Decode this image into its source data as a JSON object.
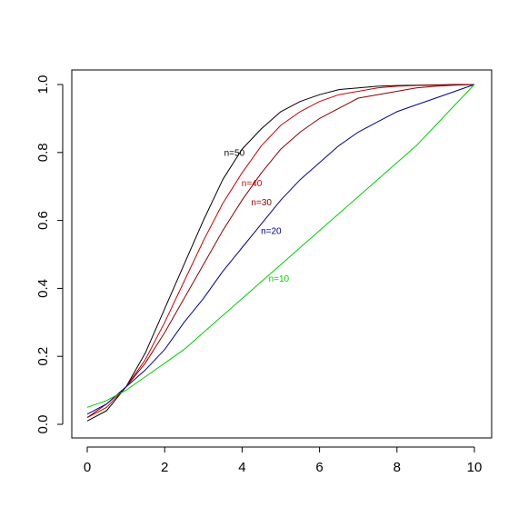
{
  "chart_data": {
    "type": "line",
    "title": "",
    "xlabel": "",
    "ylabel": "",
    "xlim": [
      0,
      10
    ],
    "ylim": [
      0,
      1
    ],
    "x_ticks": [
      0,
      2,
      4,
      6,
      8,
      10
    ],
    "x_tick_labels": [
      "0",
      "2",
      "4",
      "6",
      "8",
      "10"
    ],
    "y_ticks": [
      0.0,
      0.2,
      0.4,
      0.6,
      0.8,
      1.0
    ],
    "y_tick_labels": [
      "0.0",
      "0.2",
      "0.4",
      "0.6",
      "0.8",
      "1.0"
    ],
    "grid": false,
    "legend": "none",
    "series": [
      {
        "name": "n=50",
        "color": "#000000",
        "x": [
          0,
          0.5,
          1,
          1.5,
          2,
          2.5,
          3,
          3.5,
          4,
          4.5,
          5,
          5.5,
          6,
          6.5,
          7,
          7.5,
          8,
          8.5,
          9,
          9.5,
          10
        ],
        "values": [
          0.01,
          0.04,
          0.11,
          0.21,
          0.34,
          0.47,
          0.6,
          0.72,
          0.81,
          0.87,
          0.92,
          0.95,
          0.97,
          0.985,
          0.99,
          0.995,
          0.997,
          0.998,
          0.999,
          1.0,
          1.0
        ],
        "label_x": 3.8,
        "label_y": 0.79
      },
      {
        "name": "n=40",
        "color": "#cc0000",
        "x": [
          0,
          0.5,
          1,
          1.5,
          2,
          2.5,
          3,
          3.5,
          4,
          4.5,
          5,
          5.5,
          6,
          6.5,
          7,
          7.5,
          8,
          8.5,
          9,
          9.5,
          10
        ],
        "values": [
          0.02,
          0.05,
          0.11,
          0.19,
          0.3,
          0.42,
          0.54,
          0.65,
          0.74,
          0.82,
          0.88,
          0.92,
          0.95,
          0.97,
          0.98,
          0.99,
          0.995,
          0.997,
          0.998,
          0.999,
          1.0
        ],
        "label_x": 4.25,
        "label_y": 0.7
      },
      {
        "name": "n=30",
        "color": "#8b0000",
        "x": [
          0,
          0.5,
          1,
          1.5,
          2,
          2.5,
          3,
          3.5,
          4,
          4.5,
          5,
          5.5,
          6,
          6.5,
          7,
          7.5,
          8,
          8.5,
          9,
          9.5,
          10
        ],
        "values": [
          0.02,
          0.06,
          0.11,
          0.18,
          0.27,
          0.37,
          0.47,
          0.57,
          0.66,
          0.74,
          0.81,
          0.86,
          0.9,
          0.93,
          0.96,
          0.97,
          0.98,
          0.99,
          0.995,
          0.998,
          1.0
        ],
        "label_x": 4.5,
        "label_y": 0.645
      },
      {
        "name": "n=20",
        "color": "#00008b",
        "x": [
          0,
          0.5,
          1,
          1.5,
          2,
          2.5,
          3,
          3.5,
          4,
          4.5,
          5,
          5.5,
          6,
          6.5,
          7,
          7.5,
          8,
          8.5,
          9,
          9.5,
          10
        ],
        "values": [
          0.03,
          0.06,
          0.11,
          0.16,
          0.22,
          0.3,
          0.37,
          0.45,
          0.52,
          0.59,
          0.66,
          0.72,
          0.77,
          0.82,
          0.86,
          0.89,
          0.92,
          0.94,
          0.96,
          0.98,
          1.0
        ],
        "label_x": 4.75,
        "label_y": 0.56
      },
      {
        "name": "n=10",
        "color": "#00cc00",
        "x": [
          0,
          0.5,
          1,
          1.5,
          2,
          2.5,
          3,
          3.5,
          4,
          4.5,
          5,
          5.5,
          6,
          6.5,
          7,
          7.5,
          8,
          8.5,
          9,
          9.5,
          10
        ],
        "values": [
          0.05,
          0.07,
          0.1,
          0.14,
          0.18,
          0.22,
          0.27,
          0.32,
          0.37,
          0.42,
          0.47,
          0.52,
          0.57,
          0.62,
          0.67,
          0.72,
          0.77,
          0.82,
          0.88,
          0.94,
          1.0
        ],
        "label_x": 4.95,
        "label_y": 0.42
      }
    ]
  }
}
